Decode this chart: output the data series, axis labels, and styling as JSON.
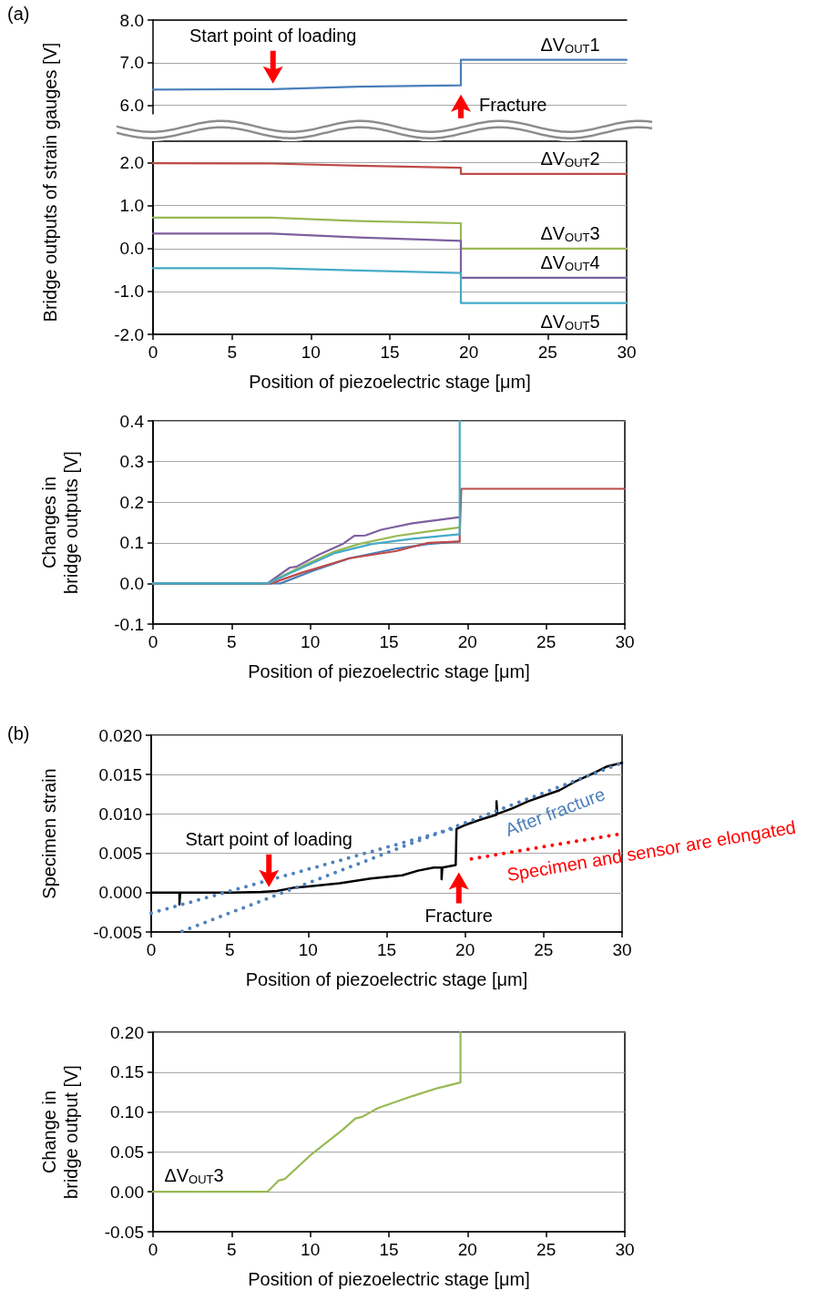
{
  "chart_data": [
    {
      "type": "line",
      "ylabel": "Bridge outputs of strain gauges [V]",
      "annotations": [
        "(a)",
        {
          "text": "Start point of loading",
          "x": 7.6,
          "y": 6.38
        },
        {
          "text": "Fracture",
          "x": 19.5,
          "y": 6.47
        }
      ],
      "xlim": [
        0,
        30
      ],
      "ylim": [
        5.8,
        8
      ],
      "yticks": [
        {
          "value": 6,
          "label": "6.0"
        },
        {
          "value": 7,
          "label": "7.0"
        },
        {
          "value": 8,
          "label": "8.0"
        }
      ],
      "tick_labels": "y",
      "grid": "y",
      "marker": "none",
      "series": [
        {
          "name": "ΔV$_{OUT}$1",
          "color": "#4a7ebb",
          "x": [
            0,
            7.6,
            13,
            19.5,
            19.5,
            30
          ],
          "values": [
            6.37,
            6.38,
            6.44,
            6.47,
            7.07,
            7.07
          ]
        }
      ]
    },
    {
      "type": "line",
      "xlabel": "Position of piezoelectric stage [μm]",
      "xlim": [
        0,
        30
      ],
      "ylim": [
        -2,
        2.5
      ],
      "xticks": [
        0,
        5,
        10,
        15,
        20,
        25,
        30
      ],
      "yticks": [
        {
          "value": -2,
          "label": "-2.0"
        },
        {
          "value": -1,
          "label": "-1.0"
        },
        {
          "value": 0,
          "label": "0.0"
        },
        {
          "value": 1,
          "label": "1.0"
        },
        {
          "value": 2,
          "label": "2.0"
        }
      ],
      "grid": "y",
      "marker": "none",
      "series": [
        {
          "name": "ΔV$_{OUT}$2",
          "color": "#be4b48",
          "x": [
            0,
            7.5,
            13,
            19.5,
            19.5,
            30
          ],
          "values": [
            1.99,
            1.98,
            1.93,
            1.88,
            1.74,
            1.74
          ]
        },
        {
          "name": "ΔV$_{OUT}$3",
          "color": "#98b954",
          "x": [
            0,
            7.5,
            13,
            19.5,
            19.5,
            30
          ],
          "values": [
            0.72,
            0.72,
            0.64,
            0.59,
            0.0,
            0.0
          ]
        },
        {
          "name": "ΔV$_{OUT}$4",
          "color": "#7d60a0",
          "x": [
            0,
            7.5,
            13,
            19.5,
            19.5,
            30
          ],
          "values": [
            0.35,
            0.35,
            0.26,
            0.18,
            -0.68,
            -0.68
          ]
        },
        {
          "name": "ΔV$_{OUT}$5",
          "color": "#46aac5",
          "x": [
            0,
            7.5,
            13,
            19.5,
            19.5,
            30
          ],
          "values": [
            -0.46,
            -0.46,
            -0.51,
            -0.57,
            -1.27,
            -1.27
          ]
        }
      ]
    },
    {
      "type": "line",
      "xlabel": "Position of piezoelectric stage [μm]",
      "ylabel": "Changes in\nbridge outputs [V]",
      "xlim": [
        0,
        30
      ],
      "ylim": [
        -0.1,
        0.4
      ],
      "xticks": [
        0,
        5,
        10,
        15,
        20,
        25,
        30
      ],
      "yticks": [
        {
          "value": -0.1,
          "label": "-0.1"
        },
        {
          "value": 0,
          "label": "0.0"
        },
        {
          "value": 0.1,
          "label": "0.1"
        },
        {
          "value": 0.2,
          "label": "0.2"
        },
        {
          "value": 0.3,
          "label": "0.3"
        },
        {
          "value": 0.4,
          "label": "0.4"
        }
      ],
      "grid": "y",
      "marker": "none",
      "series": [
        {
          "color": "#4a7ebb",
          "x": [
            0,
            8.1,
            10.1,
            12.5,
            15.5,
            17.5,
            19.5
          ],
          "values": [
            0,
            0,
            0.03,
            0.062,
            0.086,
            0.097,
            0.103
          ]
        },
        {
          "color": "#be4b48",
          "x": [
            0,
            7.5,
            9.5,
            12.5,
            15.5,
            17.5,
            19.5,
            19.5,
            19.6,
            30
          ],
          "values": [
            0,
            0,
            0.027,
            0.062,
            0.08,
            0.1,
            0.103,
            0.117,
            0.233,
            0.233
          ]
        },
        {
          "color": "#98b954",
          "x": [
            0,
            7.27,
            9.5,
            11.5,
            13.1,
            15.5,
            17.5,
            19.5
          ],
          "values": [
            0,
            0,
            0.043,
            0.078,
            0.097,
            0.117,
            0.128,
            0.138
          ]
        },
        {
          "color": "#7d60a0",
          "x": [
            0,
            7.27,
            8.7,
            9.1,
            10.5,
            12.1,
            12.8,
            13.5,
            14.5,
            16.5,
            19.5
          ],
          "values": [
            0,
            0,
            0.039,
            0.041,
            0.07,
            0.098,
            0.117,
            0.118,
            0.132,
            0.148,
            0.163
          ]
        },
        {
          "color": "#46aac5",
          "x": [
            0,
            7.27,
            9.5,
            11.5,
            13.9,
            16.5,
            19.5,
            19.5
          ],
          "values": [
            0,
            0,
            0.039,
            0.074,
            0.097,
            0.11,
            0.121,
            0.4
          ]
        }
      ]
    },
    {
      "type": "line",
      "xlabel": "Position of piezoelectric stage [μm]",
      "ylabel": "Specimen strain",
      "annotations": [
        "(b)",
        {
          "text": "Start point of loading",
          "x": 7.5,
          "y": 0
        },
        {
          "text": "Fracture",
          "x": 19.6,
          "y": 0.0035
        }
      ],
      "xlim": [
        0,
        30
      ],
      "ylim": [
        -0.005,
        0.02
      ],
      "xticks": [
        0,
        5,
        10,
        15,
        20,
        25,
        30
      ],
      "yticks": [
        {
          "value": -0.005,
          "label": "-0.005"
        },
        {
          "value": 0,
          "label": "0.000"
        },
        {
          "value": 0.005,
          "label": "0.005"
        },
        {
          "value": 0.01,
          "label": "0.010"
        },
        {
          "value": 0.015,
          "label": "0.015"
        },
        {
          "value": 0.02,
          "label": "0.020"
        }
      ],
      "grid": "y",
      "marker": "none",
      "series": [
        {
          "color": "#000000",
          "x": [
            0,
            1.8,
            1.8,
            1.85,
            5,
            7,
            8,
            9,
            10,
            12,
            14,
            15,
            16,
            17,
            18,
            18.5,
            18.5,
            18.55,
            19.4,
            19.45,
            20,
            21,
            22,
            22,
            22.05,
            23,
            24,
            25,
            26,
            27,
            28,
            29,
            30
          ],
          "values": [
            0,
            0,
            -0.0015,
            0,
            0,
            0.0001,
            0.0002,
            0.0006,
            0.0008,
            0.0012,
            0.0018,
            0.002,
            0.0022,
            0.0028,
            0.0032,
            0.0032,
            0.0017,
            0.0032,
            0.0035,
            0.0081,
            0.0086,
            0.0093,
            0.0099,
            0.0116,
            0.01,
            0.0107,
            0.0116,
            0.0123,
            0.013,
            0.0141,
            0.015,
            0.016,
            0.0165
          ]
        },
        {
          "color": "#4f81bd",
          "line_style": "dotted",
          "x": [
            0,
            19.2
          ],
          "values": [
            -0.0026,
            0.0081
          ]
        },
        {
          "name": "After fracture",
          "color": "#4f81bd",
          "line_style": "dotted",
          "x": [
            1.97,
            30
          ],
          "values": [
            -0.0049,
            0.0165
          ]
        },
        {
          "name": "Specimen and sensor are elongated",
          "color": "#ff0000",
          "line_style": "dotted",
          "x": [
            20.4,
            30
          ],
          "values": [
            0.0043,
            0.0075
          ]
        }
      ]
    },
    {
      "type": "line",
      "xlabel": "Position of piezoelectric stage [μm]",
      "ylabel": "Change in\nbridge output [V]",
      "xlim": [
        0,
        30
      ],
      "ylim": [
        -0.05,
        0.2
      ],
      "xticks": [
        0,
        5,
        10,
        15,
        20,
        25,
        30
      ],
      "yticks": [
        {
          "value": -0.05,
          "label": "-0.05"
        },
        {
          "value": 0,
          "label": "0.00"
        },
        {
          "value": 0.05,
          "label": "0.05"
        },
        {
          "value": 0.1,
          "label": "0.10"
        },
        {
          "value": 0.15,
          "label": "0.15"
        },
        {
          "value": 0.2,
          "label": "0.20"
        }
      ],
      "grid": "y",
      "marker": "none",
      "series": [
        {
          "name": "ΔV$_{OUT}$3",
          "color": "#98b954",
          "x": [
            0,
            7.27,
            7.97,
            8.37,
            10.07,
            12.07,
            12.87,
            13.3,
            14.3,
            16.5,
            18.1,
            19.55,
            19.55
          ],
          "values": [
            0,
            0,
            0.014,
            0.016,
            0.047,
            0.078,
            0.092,
            0.094,
            0.105,
            0.12,
            0.13,
            0.137,
            0.2
          ]
        }
      ]
    }
  ]
}
